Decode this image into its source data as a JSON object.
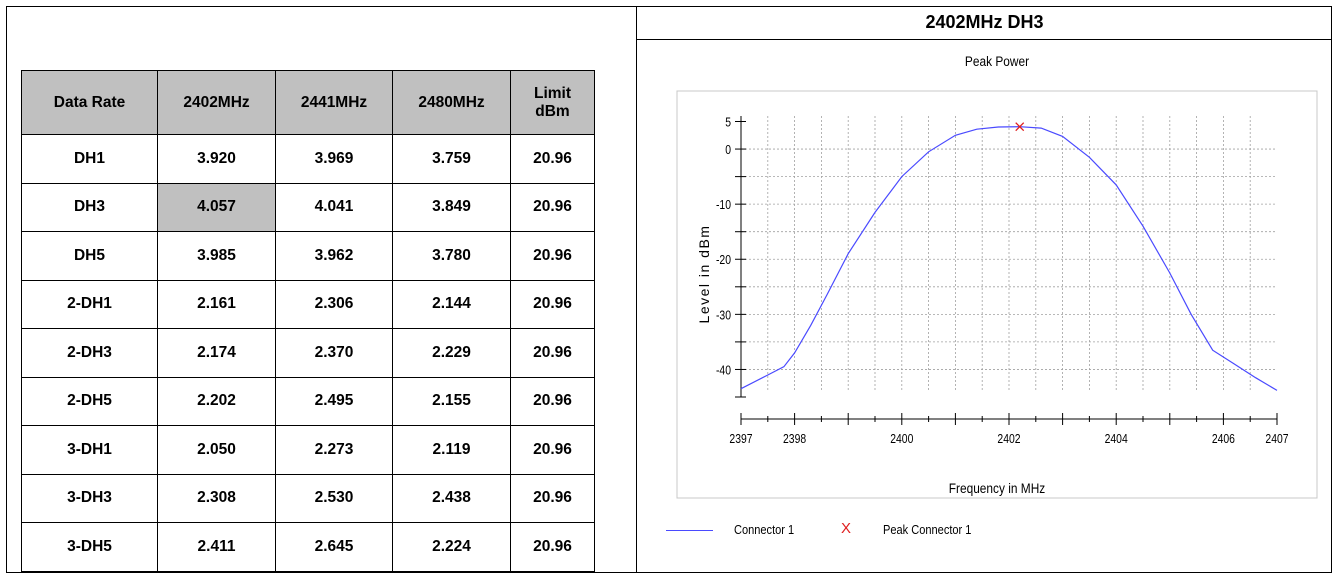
{
  "table": {
    "headers": [
      "Data Rate",
      "2402MHz",
      "2441MHz",
      "2480MHz",
      "Limit\ndBm"
    ],
    "rows": [
      [
        "DH1",
        "3.920",
        "3.969",
        "3.759",
        "20.96"
      ],
      [
        "DH3",
        "4.057",
        "4.041",
        "3.849",
        "20.96"
      ],
      [
        "DH5",
        "3.985",
        "3.962",
        "3.780",
        "20.96"
      ],
      [
        "2-DH1",
        "2.161",
        "2.306",
        "2.144",
        "20.96"
      ],
      [
        "2-DH3",
        "2.174",
        "2.370",
        "2.229",
        "20.96"
      ],
      [
        "2-DH5",
        "2.202",
        "2.495",
        "2.155",
        "20.96"
      ],
      [
        "3-DH1",
        "2.050",
        "2.273",
        "2.119",
        "20.96"
      ],
      [
        "3-DH3",
        "2.308",
        "2.530",
        "2.438",
        "20.96"
      ],
      [
        "3-DH5",
        "2.411",
        "2.645",
        "2.224",
        "20.96"
      ]
    ],
    "highlight_color": "#c0c0c0"
  },
  "panel_title": "2402MHz DH3",
  "chart_data": {
    "type": "line",
    "title": "Peak Power",
    "xlabel": "Frequency in MHz",
    "ylabel": "Level in dBm",
    "xlim": [
      2397,
      2407
    ],
    "ylim": [
      -45,
      6
    ],
    "x_ticks": [
      2397,
      2398,
      2400,
      2402,
      2404,
      2406,
      2407
    ],
    "y_ticks": [
      5,
      0,
      -10,
      -20,
      -30,
      -40
    ],
    "grid": true,
    "legend_position": "bottom-left",
    "series": [
      {
        "name": "Connector 1",
        "color": "#4a4aff",
        "x": [
          2397.0,
          2397.5,
          2397.8,
          2398.0,
          2398.3,
          2398.6,
          2399.0,
          2399.5,
          2400.0,
          2400.5,
          2401.0,
          2401.4,
          2401.8,
          2402.2,
          2402.6,
          2403.0,
          2403.5,
          2404.0,
          2404.5,
          2405.0,
          2405.4,
          2405.8,
          2406.2,
          2406.6,
          2407.0
        ],
        "y": [
          -43.5,
          -41.0,
          -39.5,
          -37.0,
          -32.0,
          -26.5,
          -19.0,
          -11.5,
          -5.0,
          -0.5,
          2.5,
          3.6,
          4.0,
          4.05,
          3.8,
          2.3,
          -1.5,
          -6.5,
          -14.0,
          -22.5,
          -30.0,
          -36.5,
          -39.0,
          -41.5,
          -43.8
        ]
      }
    ],
    "peak_marker": {
      "name": "Peak Connector 1",
      "x": 2402.2,
      "y": 4.057,
      "color": "#e02020"
    }
  }
}
